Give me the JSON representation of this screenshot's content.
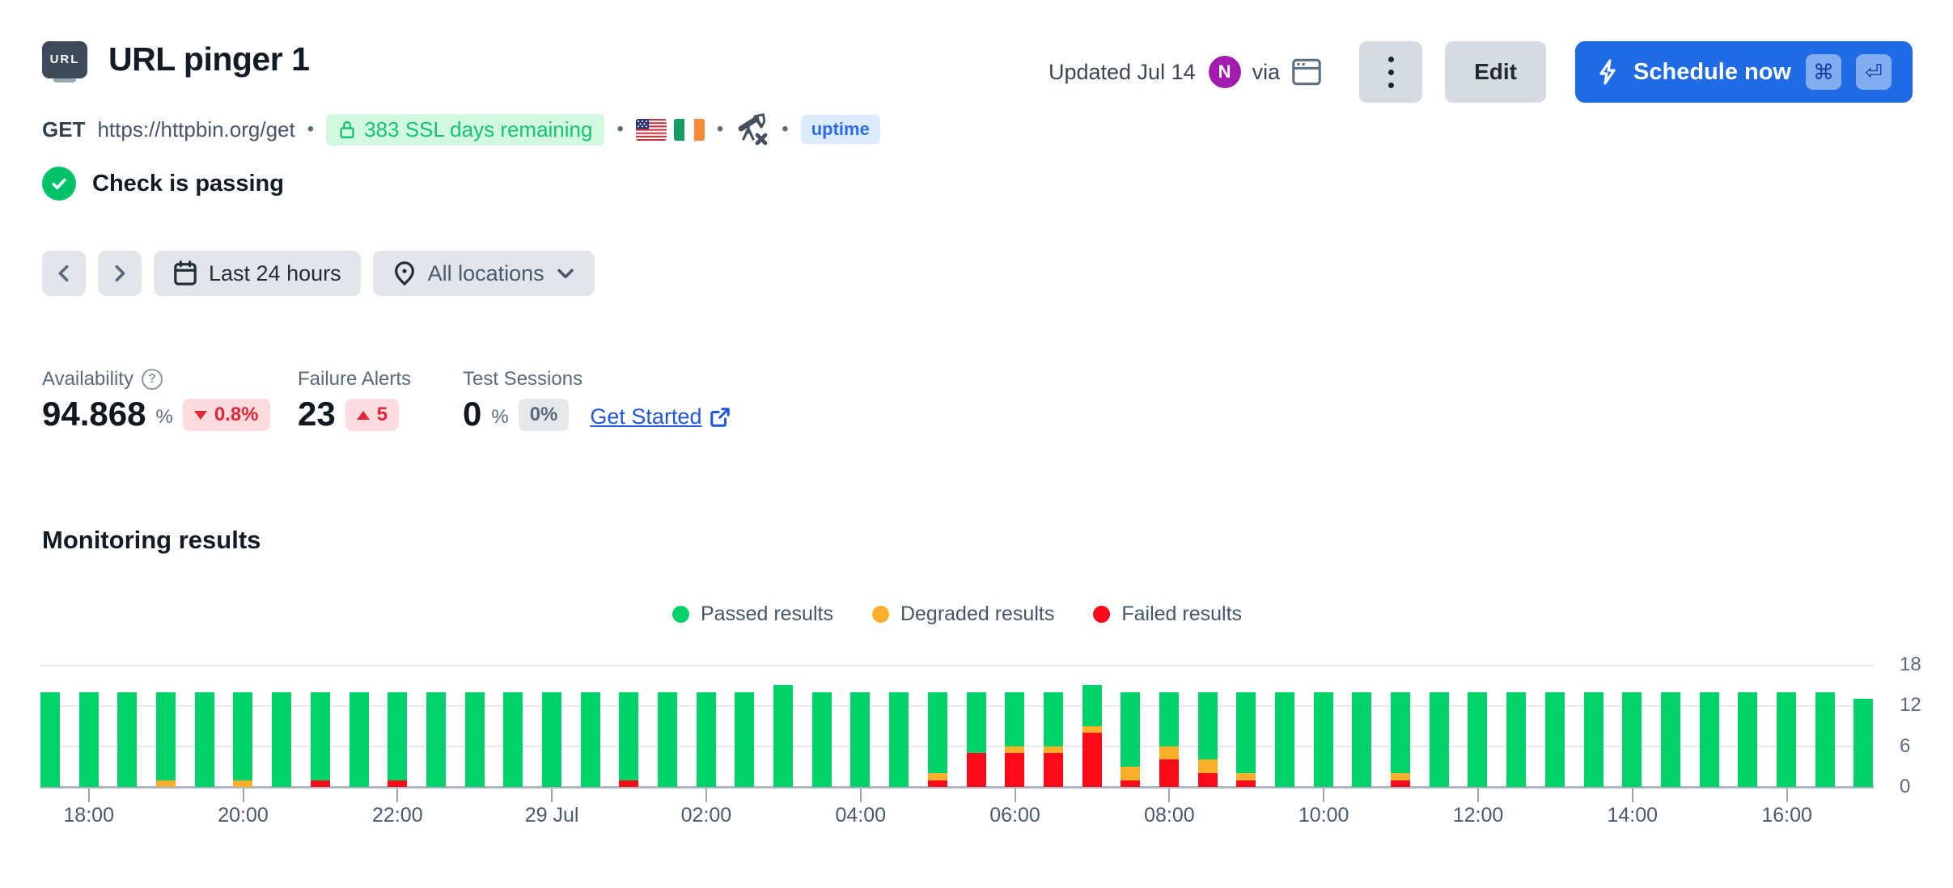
{
  "header": {
    "icon_label": "URL",
    "title": "URL pinger 1",
    "method": "GET",
    "url": "https://httpbin.org/get",
    "separator": "•",
    "ssl_badge": "383 SSL days remaining",
    "uptime_badge": "uptime",
    "updated": "Updated Jul 14",
    "avatar_initial": "N",
    "via_label": "via",
    "edit_label": "Edit",
    "schedule_label": "Schedule now",
    "shortcut_keys": [
      "⌘",
      "⏎"
    ]
  },
  "status": {
    "label": "Check is passing"
  },
  "toolbar": {
    "time_range": "Last 24 hours",
    "locations": "All locations"
  },
  "stats": {
    "availability": {
      "label": "Availability",
      "value": "94.868",
      "unit": "%",
      "delta": "0.8%",
      "delta_dir": "down"
    },
    "failure_alerts": {
      "label": "Failure Alerts",
      "value": "23",
      "delta": "5",
      "delta_dir": "up"
    },
    "test_sessions": {
      "label": "Test Sessions",
      "value": "0",
      "unit": "%",
      "badge": "0%",
      "link": "Get Started"
    }
  },
  "section": {
    "title": "Monitoring results"
  },
  "colors": {
    "accent_blue": "#1E6BE5",
    "passed_green": "#00D26A",
    "degraded_orange": "#FDAF2C",
    "failed_red": "#FB0A19",
    "ssl_green": "#16C571",
    "uptime_blue": "#2D6BE8",
    "delta_red": "#E02639",
    "avatar_purple": "#A21CAF",
    "check_green": "#00C268"
  },
  "chart_data": {
    "type": "bar",
    "stacked": true,
    "title": "Monitoring results",
    "xlabel": "",
    "ylabel": "",
    "ylim": [
      0,
      18
    ],
    "y_ticks": [
      18,
      12,
      6,
      0
    ],
    "grid": true,
    "legend_position": "top-center",
    "legend": [
      {
        "label": "Passed results",
        "color": "#00D26A"
      },
      {
        "label": "Degraded results",
        "color": "#FDAF2C"
      },
      {
        "label": "Failed results",
        "color": "#FB0A19"
      }
    ],
    "x": [
      "17:30",
      "18:00",
      "18:30",
      "19:00",
      "19:30",
      "20:00",
      "20:30",
      "21:00",
      "21:30",
      "22:00",
      "22:30",
      "23:00",
      "23:30",
      "00:00",
      "00:30",
      "01:00",
      "01:30",
      "02:00",
      "02:30",
      "03:00",
      "03:30",
      "04:00",
      "04:30",
      "05:00",
      "05:30",
      "06:00",
      "06:30",
      "07:00",
      "07:30",
      "08:00",
      "08:30",
      "09:00",
      "09:30",
      "10:00",
      "10:30",
      "11:00",
      "11:30",
      "12:00",
      "12:30",
      "13:00",
      "13:30",
      "14:00",
      "14:30",
      "15:00",
      "15:30",
      "16:00",
      "16:30",
      "17:00"
    ],
    "x_ticks": [
      {
        "i": 1,
        "label": "18:00"
      },
      {
        "i": 5,
        "label": "20:00"
      },
      {
        "i": 9,
        "label": "22:00"
      },
      {
        "i": 13,
        "label": "29 Jul"
      },
      {
        "i": 17,
        "label": "02:00"
      },
      {
        "i": 21,
        "label": "04:00"
      },
      {
        "i": 25,
        "label": "06:00"
      },
      {
        "i": 29,
        "label": "08:00"
      },
      {
        "i": 33,
        "label": "10:00"
      },
      {
        "i": 37,
        "label": "12:00"
      },
      {
        "i": 41,
        "label": "14:00"
      },
      {
        "i": 45,
        "label": "16:00"
      }
    ],
    "series": [
      {
        "name": "Failed results",
        "color": "#FB0A19",
        "values": [
          0,
          0,
          0,
          0,
          0,
          0,
          0,
          1,
          0,
          1,
          0,
          0,
          0,
          0,
          0,
          1,
          0,
          0,
          0,
          0,
          0,
          0,
          0,
          1,
          5,
          5,
          5,
          8,
          1,
          4,
          2,
          1,
          0,
          0,
          0,
          1,
          0,
          0,
          0,
          0,
          0,
          0,
          0,
          0,
          0,
          0,
          0,
          0
        ]
      },
      {
        "name": "Degraded results",
        "color": "#FDAF2C",
        "values": [
          0,
          0,
          0,
          1,
          0,
          1,
          0,
          0,
          0,
          0,
          0,
          0,
          0,
          0,
          0,
          0,
          0,
          0,
          0,
          0,
          0,
          0,
          0,
          1,
          0,
          1,
          1,
          1,
          2,
          2,
          2,
          1,
          0,
          0,
          0,
          1,
          0,
          0,
          0,
          0,
          0,
          0,
          0,
          0,
          0,
          0,
          0,
          0
        ]
      },
      {
        "name": "Passed results",
        "color": "#00D26A",
        "values": [
          14,
          14,
          14,
          13,
          14,
          13,
          14,
          13,
          14,
          13,
          14,
          14,
          14,
          14,
          14,
          13,
          14,
          14,
          14,
          15,
          14,
          14,
          14,
          12,
          9,
          8,
          8,
          6,
          11,
          8,
          10,
          12,
          14,
          14,
          14,
          12,
          14,
          14,
          14,
          14,
          14,
          14,
          14,
          14,
          14,
          14,
          14,
          13
        ]
      }
    ]
  }
}
